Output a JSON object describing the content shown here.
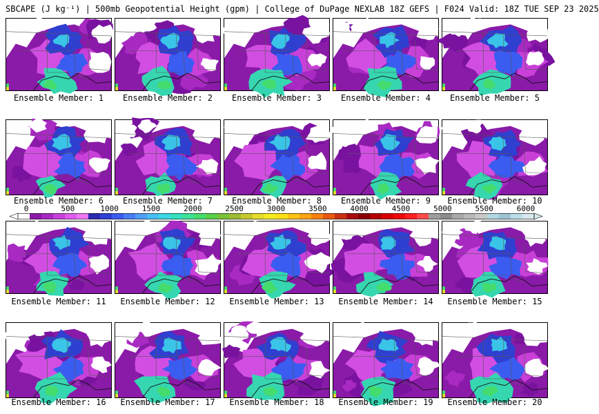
{
  "header": {
    "title": "SBCAPE (J kg⁻¹) | 500mb Geopotential Height (gpm) | College of DuPage NEXLAB 18Z GEFS | F024 Valid: 18Z TUE SEP 23 2025"
  },
  "legend": {
    "ticks": [
      "0",
      "500",
      "1000",
      "1500",
      "2000",
      "2500",
      "3000",
      "3500",
      "4000",
      "4500",
      "5000",
      "5500",
      "6000"
    ],
    "colors": [
      "#6a0a8f",
      "#8a1aa8",
      "#a82ac2",
      "#c840d8",
      "#e05cec",
      "#ee78f4",
      "#2a2ab0",
      "#3040d4",
      "#3a5cf0",
      "#4a7cf6",
      "#4f9ef8",
      "#49bdf5",
      "#3ed6e6",
      "#35e0bf",
      "#3ee296",
      "#45dc6e",
      "#58d04a",
      "#7cc23a",
      "#9cbc34",
      "#c6c82e",
      "#e6dc2a",
      "#f6ec20",
      "#ffe018",
      "#ffc414",
      "#ffa412",
      "#f88010",
      "#e85a10",
      "#c83010",
      "#a80c0c",
      "#8a0000",
      "#b40000",
      "#d80000",
      "#f00808",
      "#ff2020",
      "#ff4a4a",
      "#9e9e9e",
      "#8c8c8c",
      "#a8a8a8",
      "#b8b8b8",
      "#c8c8c8",
      "#b0d6e2",
      "#9ec4d2",
      "#bcdce6",
      "#d8e8ee"
    ]
  },
  "members": [
    {
      "label": "Ensemble Member: 1",
      "number": 1
    },
    {
      "label": "Ensemble Member: 2",
      "number": 2
    },
    {
      "label": "Ensemble Member: 3",
      "number": 3
    },
    {
      "label": "Ensemble Member: 4",
      "number": 4
    },
    {
      "label": "Ensemble Member: 5",
      "number": 5
    },
    {
      "label": "Ensemble Member: 6",
      "number": 6
    },
    {
      "label": "Ensemble Member: 7",
      "number": 7
    },
    {
      "label": "Ensemble Member: 8",
      "number": 8
    },
    {
      "label": "Ensemble Member: 9",
      "number": 9
    },
    {
      "label": "Ensemble Member: 10",
      "number": 10
    },
    {
      "label": "Ensemble Member: 11",
      "number": 11
    },
    {
      "label": "Ensemble Member: 12",
      "number": 12
    },
    {
      "label": "Ensemble Member: 13",
      "number": 13
    },
    {
      "label": "Ensemble Member: 14",
      "number": 14
    },
    {
      "label": "Ensemble Member: 15",
      "number": 15
    },
    {
      "label": "Ensemble Member: 16",
      "number": 16
    },
    {
      "label": "Ensemble Member: 17",
      "number": 17
    },
    {
      "label": "Ensemble Member: 18",
      "number": 18
    },
    {
      "label": "Ensemble Member: 19",
      "number": 19
    },
    {
      "label": "Ensemble Member: 20",
      "number": 20
    }
  ]
}
